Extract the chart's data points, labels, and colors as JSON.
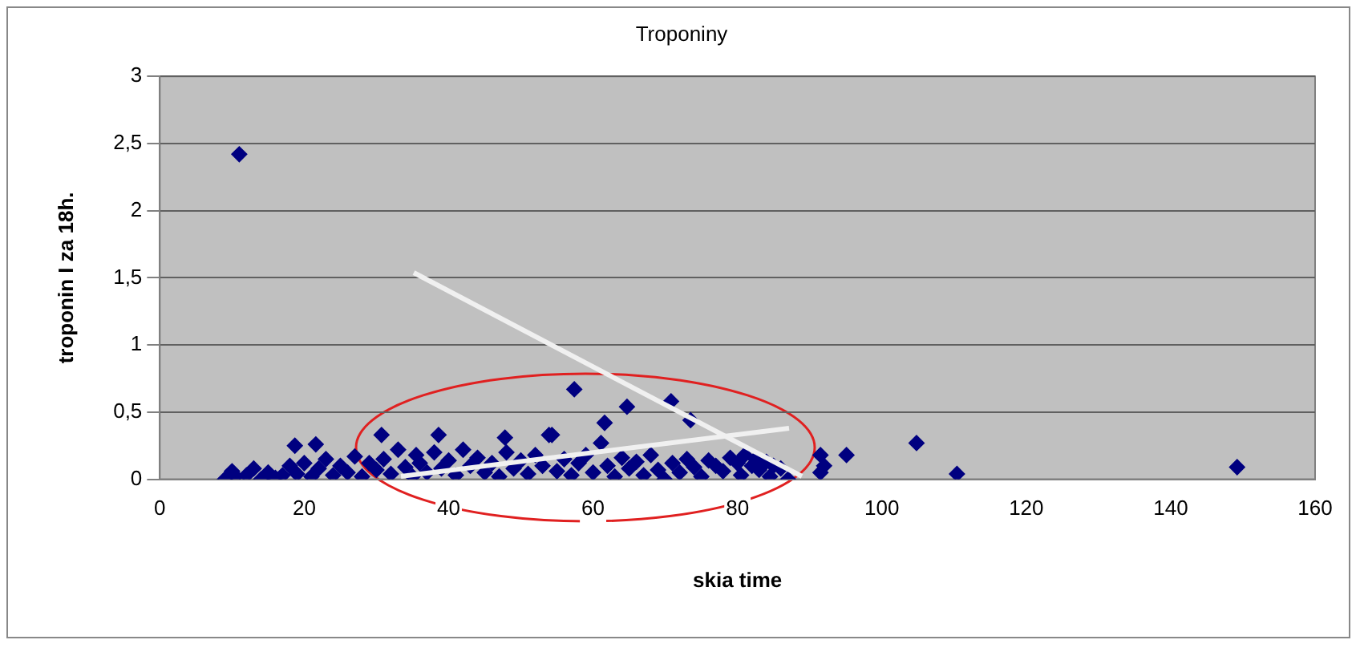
{
  "chart_data": {
    "type": "scatter",
    "title": "Troponiny",
    "xlabel": "skia time",
    "ylabel": "troponin I za 18h.",
    "xlim": [
      0,
      160
    ],
    "xticks": [
      0,
      20,
      40,
      60,
      80,
      100,
      120,
      140,
      160
    ],
    "ylim": [
      0,
      3
    ],
    "yticks": [
      0,
      {
        "value": 0.5,
        "label": "0,5"
      },
      1,
      {
        "value": 1.5,
        "label": "1,5"
      },
      2,
      {
        "value": 2.5,
        "label": "2,5"
      },
      3
    ],
    "grid": "y",
    "legend": false,
    "marker": "diamond",
    "series": [
      {
        "color": "#000080",
        "x": [
          9,
          10,
          10.5,
          11,
          12,
          13,
          14,
          15,
          16,
          17,
          18,
          18.7,
          19,
          20,
          21,
          21.6,
          22,
          23,
          24,
          25,
          26,
          27,
          28,
          29,
          30,
          30.7,
          31,
          32,
          33,
          34,
          35,
          35.5,
          36,
          37,
          38,
          38.6,
          39,
          40,
          41,
          42,
          43,
          44,
          45,
          46,
          47,
          47.8,
          48,
          49,
          50,
          51,
          52,
          53,
          53.9,
          54.3,
          55,
          56,
          57,
          57.4,
          58,
          59,
          60,
          61.1,
          61.6,
          62,
          63,
          64,
          64.7,
          65,
          66,
          67,
          68,
          69,
          69.9,
          70.8,
          71,
          72,
          73,
          73.5,
          74,
          75,
          76,
          77,
          78,
          79,
          80,
          80.5,
          81,
          82,
          82.5,
          83,
          84,
          84.5,
          85,
          86,
          87,
          91.5,
          91.5,
          92,
          95.1,
          104.8,
          110.4,
          149.2
        ],
        "values": [
          0.0,
          0.06,
          0.02,
          2.42,
          0.03,
          0.08,
          0.0,
          0.05,
          0.01,
          0.03,
          0.1,
          0.25,
          0.04,
          0.12,
          0.02,
          0.26,
          0.08,
          0.15,
          0.03,
          0.1,
          0.05,
          0.17,
          0.02,
          0.12,
          0.07,
          0.33,
          0.15,
          0.04,
          0.22,
          0.09,
          0.02,
          0.18,
          0.12,
          0.05,
          0.2,
          0.33,
          0.08,
          0.14,
          0.03,
          0.22,
          0.1,
          0.16,
          0.05,
          0.12,
          0.02,
          0.31,
          0.2,
          0.08,
          0.14,
          0.04,
          0.18,
          0.1,
          0.33,
          0.33,
          0.06,
          0.15,
          0.03,
          0.67,
          0.12,
          0.18,
          0.05,
          0.27,
          0.42,
          0.1,
          0.02,
          0.16,
          0.54,
          0.08,
          0.13,
          0.03,
          0.18,
          0.07,
          0.0,
          0.58,
          0.12,
          0.05,
          0.15,
          0.44,
          0.09,
          0.02,
          0.14,
          0.1,
          0.06,
          0.16,
          0.12,
          0.03,
          0.18,
          0.1,
          0.15,
          0.07,
          0.13,
          0.02,
          0.1,
          0.08,
          0.0,
          0.18,
          0.05,
          0.1,
          0.18,
          0.27,
          0.04,
          0.09
        ]
      }
    ]
  }
}
